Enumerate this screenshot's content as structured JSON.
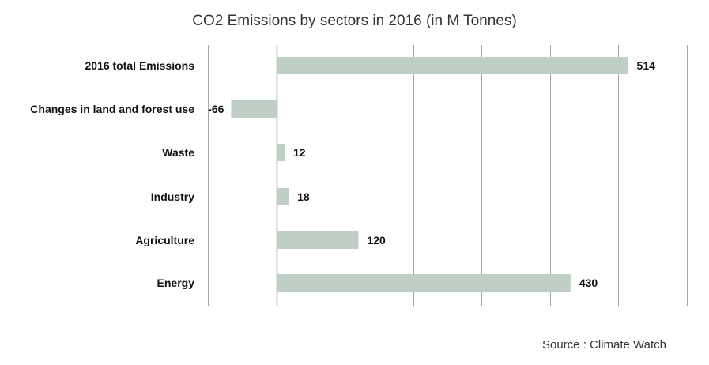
{
  "chart_data": {
    "type": "bar",
    "orientation": "horizontal",
    "title": "CO2 Emissions by sectors in 2016 (in M Tonnes)",
    "source": "Source : Climate Watch",
    "categories": [
      "2016 total Emissions",
      "Changes in land and forest use",
      "Waste",
      "Industry",
      "Agriculture",
      "Energy"
    ],
    "values": [
      514,
      -66,
      12,
      18,
      120,
      430
    ],
    "value_labels": [
      "514",
      "-66",
      "12",
      "18",
      "120",
      "430"
    ],
    "xlim": [
      -100,
      600
    ],
    "grid": true,
    "bar_color": "#bfcfc5",
    "grid_color": "#a6a6a6"
  }
}
